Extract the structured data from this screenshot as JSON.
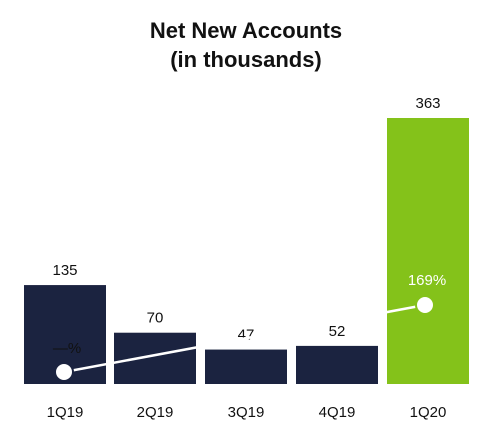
{
  "chart_data": {
    "type": "bar",
    "title_line1": "Net New Accounts",
    "title_line2": "(in thousands)",
    "categories": [
      "1Q19",
      "2Q19",
      "3Q19",
      "4Q19",
      "1Q20"
    ],
    "values": [
      135,
      70,
      47,
      52,
      363
    ],
    "value_labels": [
      "135",
      "70",
      "47",
      "52",
      "363"
    ],
    "overlay_line": {
      "type": "line",
      "points": [
        {
          "category": "1Q19",
          "label": "—%"
        },
        {
          "category": "1Q20",
          "label": "169%"
        }
      ]
    },
    "colors": {
      "default_bar": "#1b2340",
      "highlight_bar": "#84c21a",
      "highlight_label": "#ffffff",
      "line": "#ffffff",
      "text": "#111111"
    },
    "grid": false,
    "legend": "none"
  }
}
